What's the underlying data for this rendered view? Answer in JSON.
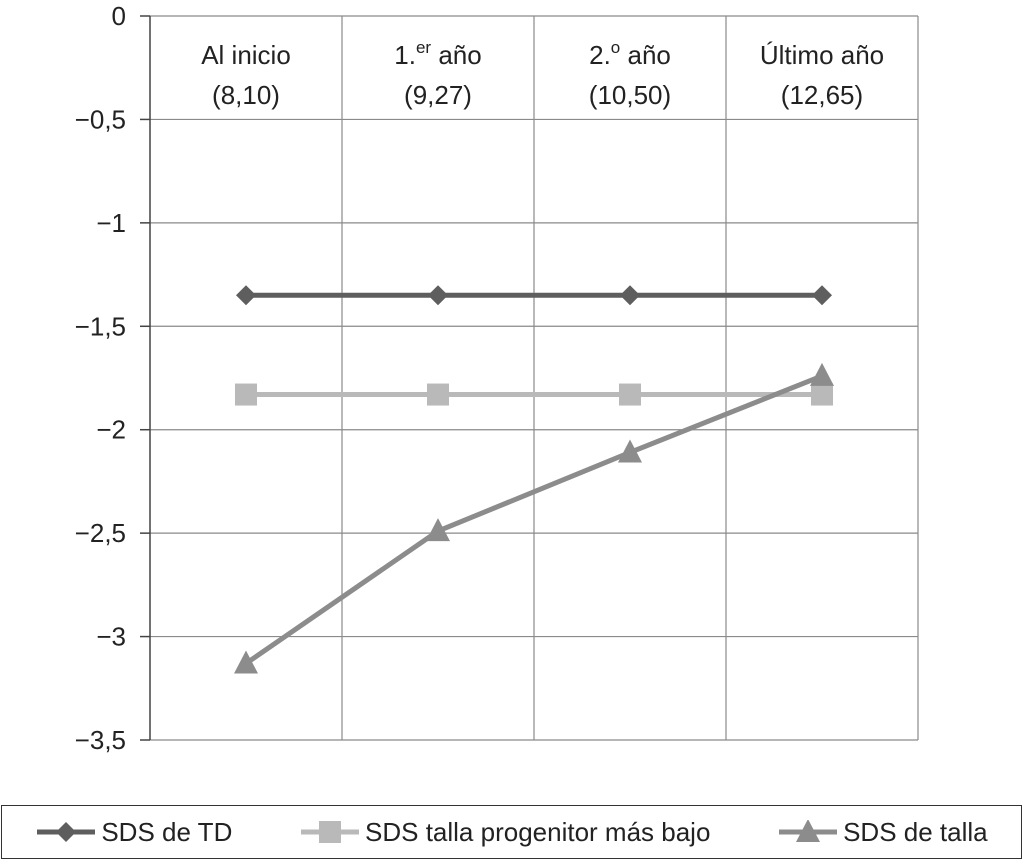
{
  "chart_data": {
    "type": "line",
    "categories": [
      {
        "base": "Al inicio",
        "sup": "",
        "suffix": "",
        "age": "(8,10)"
      },
      {
        "base": "1.",
        "sup": "er",
        "suffix": " año",
        "age": "(9,27)"
      },
      {
        "base": "2.",
        "sup": "o",
        "suffix": " año",
        "age": "(10,50)"
      },
      {
        "base": "Último año",
        "sup": "",
        "suffix": "",
        "age": "(12,65)"
      }
    ],
    "y_ticks": [
      {
        "value": 0,
        "label": "0"
      },
      {
        "value": -0.5,
        "label": "−0,5"
      },
      {
        "value": -1,
        "label": "−1"
      },
      {
        "value": -1.5,
        "label": "−1,5"
      },
      {
        "value": -2,
        "label": "−2"
      },
      {
        "value": -2.5,
        "label": "−2,5"
      },
      {
        "value": -3,
        "label": "−3"
      },
      {
        "value": -3.5,
        "label": "−3,5"
      }
    ],
    "ylim": [
      -3.5,
      0
    ],
    "grid": true,
    "legend_position": "bottom",
    "series": [
      {
        "name": "SDS de TD",
        "values": [
          -1.35,
          -1.35,
          -1.35,
          -1.35
        ],
        "color": "#5e5e5e",
        "marker": "diamond"
      },
      {
        "name": "SDS talla progenitor más bajo",
        "values": [
          -1.83,
          -1.83,
          -1.83,
          -1.83
        ],
        "color": "#b9b9b9",
        "marker": "square"
      },
      {
        "name": "SDS de talla",
        "values": [
          -3.13,
          -2.49,
          -2.11,
          -1.74
        ],
        "color": "#8c8c8c",
        "marker": "triangle"
      }
    ]
  }
}
